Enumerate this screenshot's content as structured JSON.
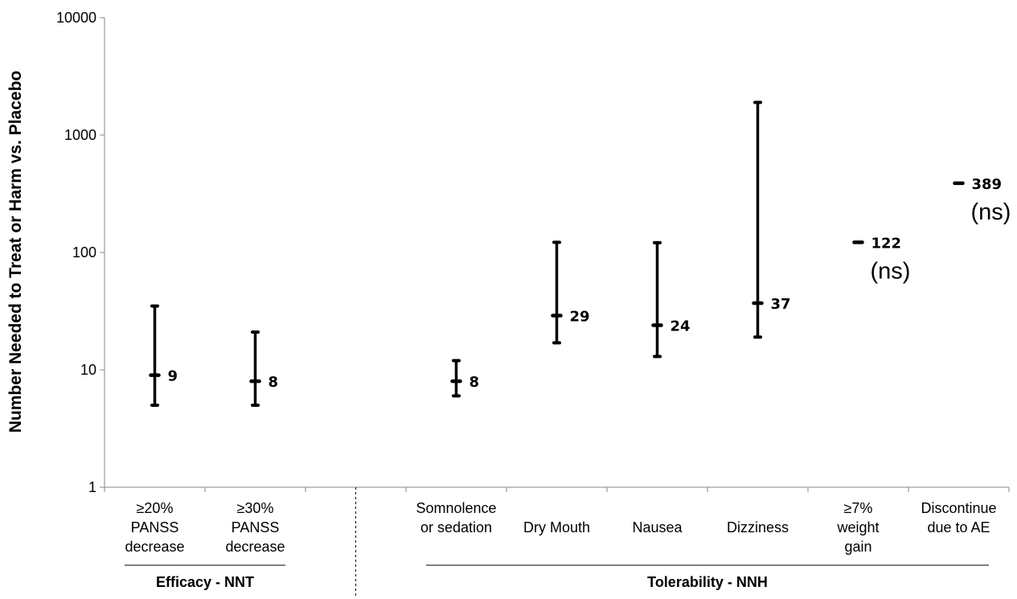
{
  "chart_data": {
    "type": "errorbar",
    "ylabel": "Number Needed to Treat or Harm vs. Placebo",
    "y_scale": "log",
    "ylim": [
      1,
      10000
    ],
    "y_ticks": [
      "1",
      "10",
      "100",
      "1000",
      "10000"
    ],
    "categories": [
      [
        "≥20%",
        "PANSS",
        "decrease"
      ],
      [
        "≥30%",
        "PANSS",
        "decrease"
      ],
      [],
      [
        "Somnolence",
        "or sedation"
      ],
      [
        "Dry Mouth"
      ],
      [
        "Nausea"
      ],
      [
        "Dizziness"
      ],
      [
        "≥7%",
        "weight",
        "gain"
      ],
      [
        "Discontinue",
        "due to AE"
      ]
    ],
    "points": [
      {
        "category_index": 0,
        "value": 9,
        "low": 5,
        "high": 35,
        "label": "9",
        "note": ""
      },
      {
        "category_index": 1,
        "value": 8,
        "low": 5,
        "high": 21,
        "label": "8",
        "note": ""
      },
      {
        "category_index": 3,
        "value": 8,
        "low": 6,
        "high": 12,
        "label": "8",
        "note": ""
      },
      {
        "category_index": 4,
        "value": 29,
        "low": 17,
        "high": 122,
        "label": "29",
        "note": ""
      },
      {
        "category_index": 5,
        "value": 24,
        "low": 13,
        "high": 121,
        "label": "24",
        "note": ""
      },
      {
        "category_index": 6,
        "value": 37,
        "low": 19,
        "high": 1898,
        "label": "37",
        "note": ""
      },
      {
        "category_index": 7,
        "value": 122,
        "low": 122,
        "high": 122,
        "label": "122",
        "note": "(ns)"
      },
      {
        "category_index": 8,
        "value": 389,
        "low": 389,
        "high": 389,
        "label": "389",
        "note": "(ns)"
      }
    ],
    "groups": [
      {
        "label": "Efficacy - NNT",
        "from_index": 0,
        "to_index": 1
      },
      {
        "label": "Tolerability - NNH",
        "from_index": 3,
        "to_index": 8
      }
    ]
  }
}
